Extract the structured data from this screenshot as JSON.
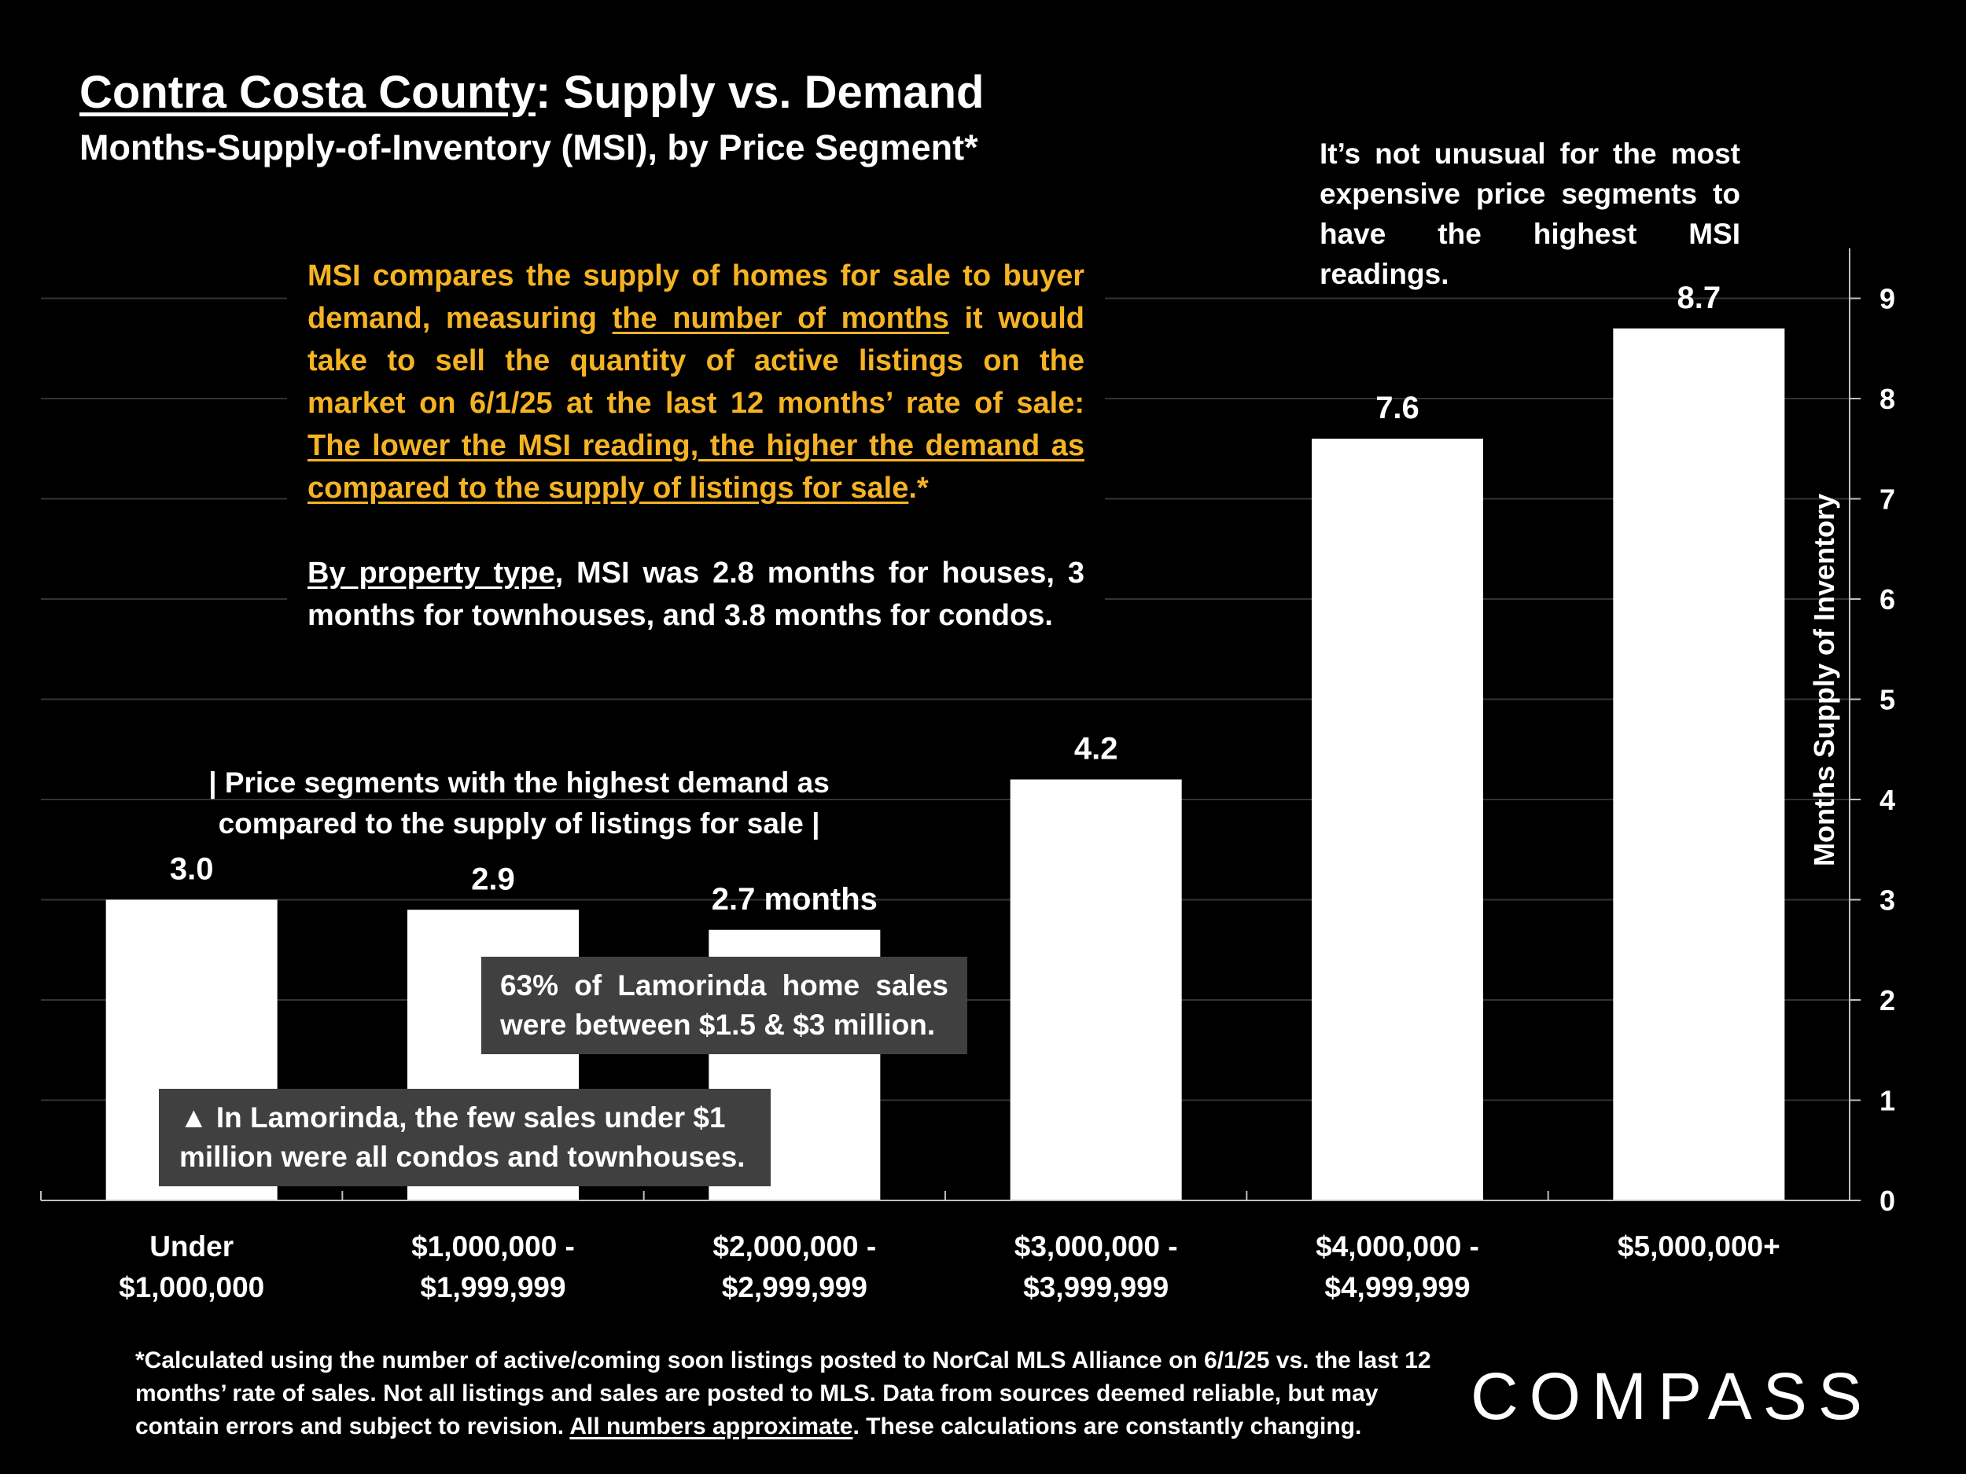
{
  "header": {
    "title_county": "Contra Costa County",
    "title_rest": ": Supply vs. Demand",
    "subtitle": "Months-Supply-of-Inventory (MSI), by Price Segment*"
  },
  "annotations": {
    "top_right": "It’s not unusual for the most expensive price segments to have the highest MSI readings.",
    "msi_p1": "MSI compares the supply of homes for sale to buyer demand, measuring ",
    "msi_u1": "the number of months",
    "msi_p2": " it would take to sell the quantity of active listings on the market on 6/1/25 at the last 12 months’ rate of sale: ",
    "msi_u2": "The lower the MSI reading, the higher the demand as compared to the supply of listings for sale",
    "msi_p3": ".*",
    "prop_u": "By property type",
    "prop_rest": ", MSI was 2.8 months for houses, 3 months for townhouses, and 3.8 months for condos.",
    "segments_line1": "| Price segments with the highest demand as",
    "segments_line2": "compared to the supply of listings for sale |",
    "lamorinda_sales": "63% of Lamorinda home sales were between $1.5 & $3 million.",
    "lamorinda_under_1m": "▲ In Lamorinda, the few sales under $1 million were all condos and townhouses."
  },
  "footnote": {
    "p1": "*Calculated using the number of active/coming soon listings posted to NorCal MLS Alliance on 6/1/25 vs. the last 12 months’ rate of sales. Not all listings and sales are posted to MLS. Data from sources deemed reliable, but may contain errors and subject to revision. ",
    "u": "All numbers approximate",
    "p2": ". These calculations are constantly changing."
  },
  "brand": {
    "logo_text": "COMPASS"
  },
  "colors": {
    "background": "#000000",
    "bar": "#ffffff",
    "highlight_text": "#F5B324",
    "callout_bg": "#404040",
    "gridline": "#333333"
  },
  "chart_data": {
    "type": "bar",
    "categories": [
      [
        "Under",
        "$1,000,000"
      ],
      [
        "$1,000,000 -",
        "$1,999,999"
      ],
      [
        "$2,000,000 -",
        "$2,999,999"
      ],
      [
        "$3,000,000 -",
        "$3,999,999"
      ],
      [
        "$4,000,000 -",
        "$4,999,999"
      ],
      [
        "$5,000,000+"
      ]
    ],
    "values": [
      3.0,
      2.9,
      2.7,
      4.2,
      7.6,
      8.7
    ],
    "data_labels": [
      "3.0",
      "2.9",
      "2.7 months",
      "4.2",
      "7.6",
      "8.7"
    ],
    "ylabel": "Months Supply of Inventory",
    "ylim": [
      0,
      9.5
    ],
    "yticks": [
      0,
      1,
      2,
      3,
      4,
      5,
      6,
      7,
      8,
      9
    ],
    "y_axis_position": "right",
    "grid": true
  }
}
